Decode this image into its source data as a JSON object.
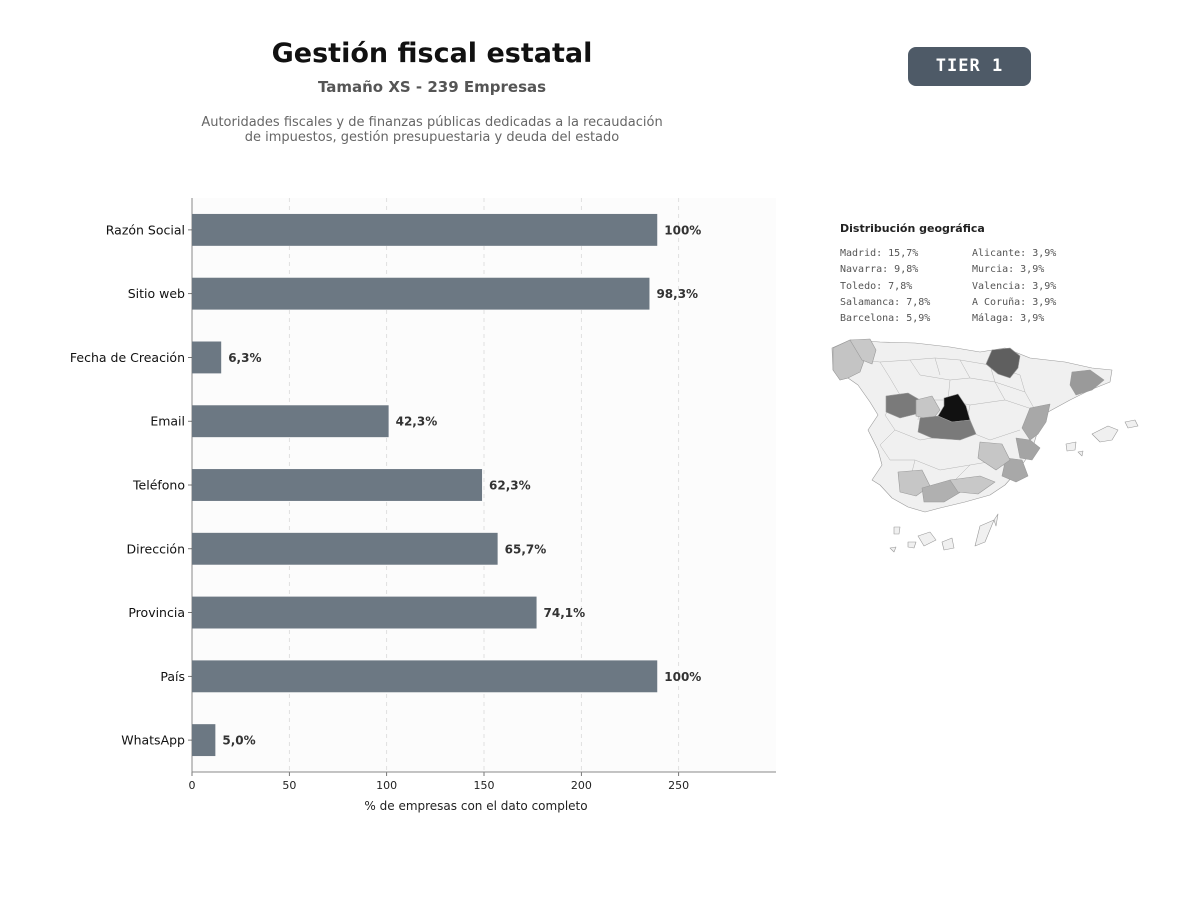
{
  "header": {
    "title": "Gestión fiscal estatal",
    "subtitle": "Tamaño XS - 239 Empresas",
    "description_line1": "Autoridades fiscales y de finanzas públicas dedicadas a la recaudación",
    "description_line2": "de impuestos, gestión presupuestaria y deuda del estado",
    "tier": "TIER 1"
  },
  "chart_data": {
    "type": "bar",
    "orientation": "horizontal",
    "categories": [
      "Razón Social",
      "Sitio web",
      "Fecha de Creación",
      "Email",
      "Teléfono",
      "Dirección",
      "Provincia",
      "País",
      "WhatsApp"
    ],
    "values": [
      239,
      235,
      15,
      101,
      149,
      157,
      177,
      239,
      12
    ],
    "value_labels": [
      "100%",
      "98,3%",
      "6,3%",
      "42,3%",
      "62,3%",
      "65,7%",
      "74,1%",
      "100%",
      "5,0%"
    ],
    "xlabel": "% de empresas con el dato completo",
    "xlim": [
      0,
      300
    ],
    "xticks": [
      0,
      50,
      100,
      150,
      200,
      250
    ],
    "grid": "vertical dashed",
    "bar_color": "#6c7883"
  },
  "geo": {
    "title": "Distribución geográfica",
    "col1": [
      "Madrid: 15,7%",
      "Navarra: 9,8%",
      "Toledo: 7,8%",
      "Salamanca: 7,8%",
      "Barcelona: 5,9%"
    ],
    "col2": [
      "Alicante: 3,9%",
      "Murcia: 3,9%",
      "Valencia: 3,9%",
      "A Coruña: 3,9%",
      "Málaga: 3,9%"
    ]
  }
}
